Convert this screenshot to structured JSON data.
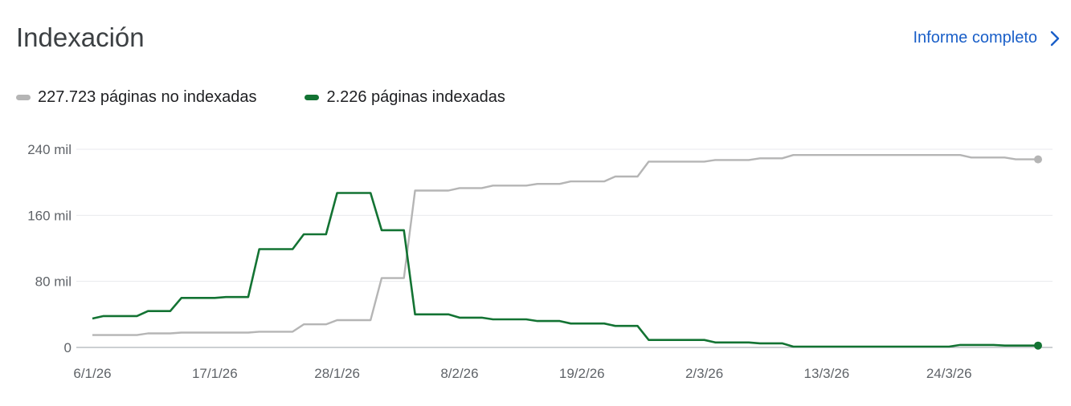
{
  "header": {
    "title": "Indexación",
    "report_link": "Informe completo"
  },
  "legend": [
    {
      "label": "227.723 páginas no indexadas",
      "color": "#b5b5b5"
    },
    {
      "label": "2.226 páginas indexadas",
      "color": "#137333"
    }
  ],
  "chart_data": {
    "type": "line",
    "xlabel": "",
    "ylabel": "",
    "ylim": [
      0,
      240000
    ],
    "y_ticks": [
      {
        "value": 0,
        "label": "0"
      },
      {
        "value": 80000,
        "label": "80 mil"
      },
      {
        "value": 160000,
        "label": "160 mil"
      },
      {
        "value": 240000,
        "label": "240 mil"
      }
    ],
    "x_ticks": [
      {
        "day": 0,
        "label": "6/1/26"
      },
      {
        "day": 11,
        "label": "17/1/26"
      },
      {
        "day": 22,
        "label": "28/1/26"
      },
      {
        "day": 33,
        "label": "8/2/26"
      },
      {
        "day": 44,
        "label": "19/2/26"
      },
      {
        "day": 55,
        "label": "2/3/26"
      },
      {
        "day": 66,
        "label": "13/3/26"
      },
      {
        "day": 77,
        "label": "24/3/26"
      }
    ],
    "grid": true,
    "series": [
      {
        "name": "227.723 páginas no indexadas",
        "color": "#b5b5b5",
        "points": [
          [
            0,
            15000
          ],
          [
            4,
            15000
          ],
          [
            5,
            17000
          ],
          [
            7,
            17000
          ],
          [
            8,
            18000
          ],
          [
            14,
            18000
          ],
          [
            15,
            19000
          ],
          [
            18,
            19000
          ],
          [
            19,
            28000
          ],
          [
            21,
            28000
          ],
          [
            22,
            33000
          ],
          [
            25,
            33000
          ],
          [
            26,
            84000
          ],
          [
            28,
            84000
          ],
          [
            29,
            190000
          ],
          [
            32,
            190000
          ],
          [
            33,
            193000
          ],
          [
            35,
            193000
          ],
          [
            36,
            196000
          ],
          [
            39,
            196000
          ],
          [
            40,
            198000
          ],
          [
            42,
            198000
          ],
          [
            43,
            201000
          ],
          [
            46,
            201000
          ],
          [
            47,
            207000
          ],
          [
            49,
            207000
          ],
          [
            50,
            225000
          ],
          [
            55,
            225000
          ],
          [
            56,
            227000
          ],
          [
            59,
            227000
          ],
          [
            60,
            229000
          ],
          [
            62,
            229000
          ],
          [
            63,
            233000
          ],
          [
            75,
            233000
          ],
          [
            78,
            233000
          ],
          [
            79,
            230000
          ],
          [
            82,
            230000
          ],
          [
            83,
            227723
          ],
          [
            85,
            227723
          ]
        ]
      },
      {
        "name": "2.226 páginas indexadas",
        "color": "#137333",
        "points": [
          [
            0,
            35000
          ],
          [
            1,
            38000
          ],
          [
            4,
            38000
          ],
          [
            5,
            44000
          ],
          [
            7,
            44000
          ],
          [
            8,
            60000
          ],
          [
            11,
            60000
          ],
          [
            12,
            61000
          ],
          [
            14,
            61000
          ],
          [
            15,
            119000
          ],
          [
            18,
            119000
          ],
          [
            19,
            137000
          ],
          [
            21,
            137000
          ],
          [
            22,
            187000
          ],
          [
            25,
            187000
          ],
          [
            26,
            142000
          ],
          [
            28,
            142000
          ],
          [
            29,
            40000
          ],
          [
            32,
            40000
          ],
          [
            33,
            36000
          ],
          [
            35,
            36000
          ],
          [
            36,
            34000
          ],
          [
            39,
            34000
          ],
          [
            40,
            32000
          ],
          [
            42,
            32000
          ],
          [
            43,
            29000
          ],
          [
            46,
            29000
          ],
          [
            47,
            26000
          ],
          [
            49,
            26000
          ],
          [
            50,
            9000
          ],
          [
            55,
            9000
          ],
          [
            56,
            6000
          ],
          [
            59,
            6000
          ],
          [
            60,
            5000
          ],
          [
            62,
            5000
          ],
          [
            63,
            1000
          ],
          [
            77,
            1000
          ],
          [
            78,
            3000
          ],
          [
            81,
            3000
          ],
          [
            82,
            2226
          ],
          [
            85,
            2226
          ]
        ]
      }
    ]
  }
}
